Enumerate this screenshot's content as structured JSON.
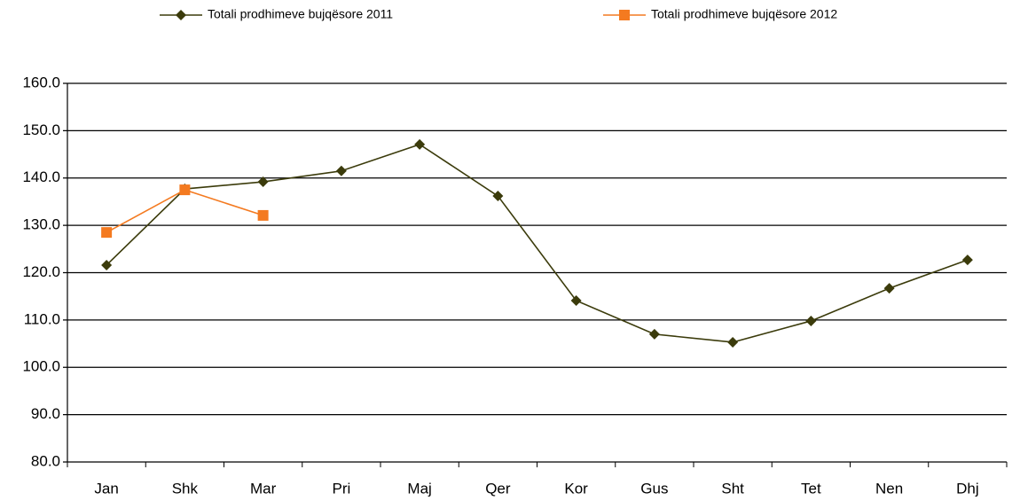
{
  "chart_data": {
    "type": "line",
    "categories": [
      "Jan",
      "Shk",
      "Mar",
      "Pri",
      "Maj",
      "Qer",
      "Kor",
      "Gus",
      "Sht",
      "Tet",
      "Nen",
      "Dhj"
    ],
    "series": [
      {
        "name": "Totali prodhimeve bujqësore 2011",
        "color": "#3b3b0b",
        "marker": "diamond",
        "values": [
          121.6,
          137.7,
          139.2,
          141.5,
          147.1,
          136.2,
          114.1,
          107.0,
          105.3,
          109.8,
          116.7,
          122.7
        ]
      },
      {
        "name": "Totali prodhimeve bujqësore 2012",
        "color": "#f47a20",
        "marker": "square",
        "values": [
          128.5,
          137.5,
          132.1,
          null,
          null,
          null,
          null,
          null,
          null,
          null,
          null,
          null
        ]
      }
    ],
    "ylim": [
      80,
      160
    ],
    "yticks": [
      {
        "value": 80,
        "label": "80.0"
      },
      {
        "value": 90,
        "label": "90.0"
      },
      {
        "value": 100,
        "label": "100.0"
      },
      {
        "value": 110,
        "label": "110.0"
      },
      {
        "value": 120,
        "label": "120.0"
      },
      {
        "value": 130,
        "label": "130.0"
      },
      {
        "value": 140,
        "label": "140.0"
      },
      {
        "value": 150,
        "label": "150.0"
      },
      {
        "value": 160,
        "label": "160.0"
      }
    ],
    "grid": true,
    "legend": "top"
  }
}
